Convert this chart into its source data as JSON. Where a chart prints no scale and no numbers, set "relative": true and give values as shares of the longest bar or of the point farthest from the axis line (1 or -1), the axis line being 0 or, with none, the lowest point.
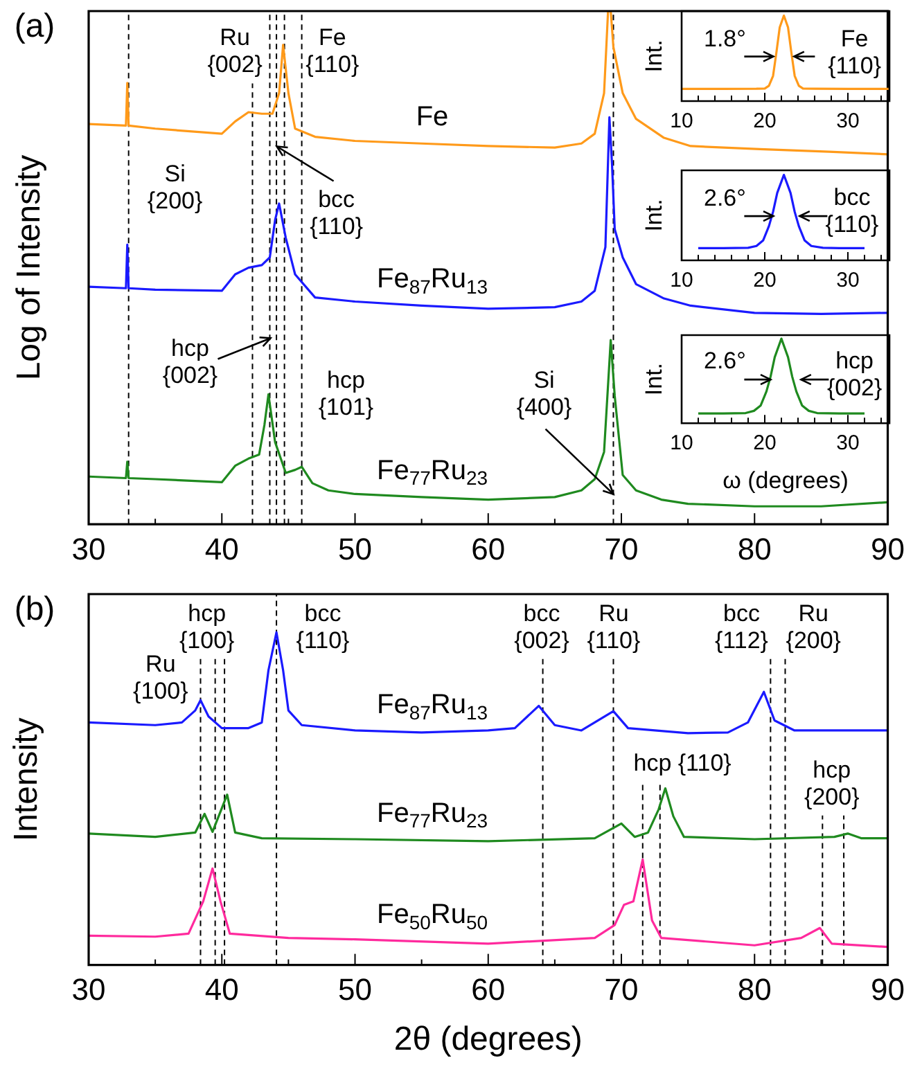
{
  "chart_data": [
    {
      "type": "line",
      "title": "(a)",
      "ylabel": "Log of Intensity",
      "relative": true,
      "xlim": [
        30,
        90
      ],
      "xticks": [
        30,
        {
          "value": 35,
          "label": null
        },
        40,
        {
          "value": 45,
          "label": null
        },
        50,
        {
          "value": 55,
          "label": null
        },
        60,
        {
          "value": 65,
          "label": null
        },
        70,
        {
          "value": 75,
          "label": null
        },
        80,
        {
          "value": 85,
          "label": null
        },
        90
      ],
      "series": [
        {
          "name": "Fe",
          "color": "#ff9a1a",
          "x": [
            30,
            32.8,
            32.9,
            33.0,
            35,
            40,
            41,
            42,
            43,
            43.8,
            44.3,
            44.6,
            45,
            45.5,
            47,
            50,
            55,
            60,
            65,
            67,
            68,
            68.7,
            69.0,
            69.2,
            69.4,
            70.1,
            71.1,
            73.2,
            75.2,
            80.4,
            85.6,
            90
          ],
          "values": [
            0.78,
            0.777,
            0.86,
            0.777,
            0.771,
            0.761,
            0.785,
            0.803,
            0.8,
            0.8,
            0.84,
            0.934,
            0.84,
            0.771,
            0.755,
            0.747,
            0.742,
            0.737,
            0.734,
            0.742,
            0.761,
            0.84,
            1,
            1,
            0.93,
            0.84,
            0.79,
            0.753,
            0.737,
            0.731,
            0.726,
            0.721
          ]
        },
        {
          "name": "Fe$_{87}$Ru$_{13}$",
          "color": "#1a1aff",
          "x": [
            30,
            32.8,
            32.9,
            33.0,
            35,
            40,
            41,
            42,
            43,
            43.6,
            44.0,
            44.3,
            44.8,
            45.5,
            47,
            50,
            55,
            60,
            65,
            67,
            68,
            68.8,
            69.1,
            69.3,
            69.5,
            70.1,
            71.1,
            73.2,
            75.2,
            80,
            85,
            90
          ],
          "values": [
            0.463,
            0.46,
            0.545,
            0.46,
            0.457,
            0.455,
            0.487,
            0.5,
            0.505,
            0.52,
            0.593,
            0.625,
            0.558,
            0.487,
            0.442,
            0.434,
            0.426,
            0.42,
            0.423,
            0.434,
            0.455,
            0.54,
            0.793,
            0.7,
            0.575,
            0.52,
            0.468,
            0.44,
            0.426,
            0.412,
            0.41,
            0.412
          ]
        },
        {
          "name": "Fe$_{77}$Ru$_{23}$",
          "color": "#1f8a1f",
          "x": [
            30,
            32.8,
            32.9,
            33.0,
            35,
            40,
            41,
            42,
            42.8,
            43.2,
            43.5,
            44,
            44.8,
            45.5,
            46,
            46.8,
            48,
            50,
            55,
            60,
            65,
            67,
            68,
            68.7,
            69.2,
            69.5,
            70.1,
            71.1,
            73,
            75,
            80,
            85,
            90
          ],
          "values": [
            0.093,
            0.09,
            0.122,
            0.09,
            0.088,
            0.082,
            0.114,
            0.128,
            0.136,
            0.194,
            0.253,
            0.16,
            0.1,
            0.106,
            0.112,
            0.08,
            0.066,
            0.059,
            0.053,
            0.048,
            0.053,
            0.066,
            0.088,
            0.141,
            0.359,
            0.25,
            0.096,
            0.066,
            0.048,
            0.04,
            0.035,
            0.035,
            0.043
          ]
        }
      ],
      "ref_lines": [
        {
          "axis": "x",
          "value": 33.0,
          "color": "#000000",
          "line_style": "dashed"
        },
        {
          "axis": "x",
          "value": 42.3,
          "color": "#000000",
          "line_style": "dashed"
        },
        {
          "axis": "x",
          "value": 43.6,
          "color": "#000000",
          "line_style": "dashed"
        },
        {
          "axis": "x",
          "value": 44.1,
          "color": "#000000",
          "line_style": "dashed"
        },
        {
          "axis": "x",
          "value": 44.7,
          "color": "#000000",
          "line_style": "dashed"
        },
        {
          "axis": "x",
          "value": 46.0,
          "color": "#000000",
          "line_style": "dashed"
        },
        {
          "axis": "x",
          "value": 69.4,
          "color": "#000000",
          "line_style": "dashed"
        }
      ],
      "annotations": [
        "Ru\n{002}",
        "Fe\n{110}",
        "Si\n{200}",
        "bcc\n{110}",
        "hcp\n{002}",
        "hcp\n{101}",
        "Si\n{400}"
      ]
    },
    {
      "type": "line",
      "ylabel": "Int.",
      "relative": true,
      "xlim": [
        10,
        35
      ],
      "xticks": [
        10,
        {
          "value": 12,
          "label": null
        },
        {
          "value": 14,
          "label": null
        },
        {
          "value": 16,
          "label": null
        },
        {
          "value": 18,
          "label": null
        },
        20,
        {
          "value": 22,
          "label": null
        },
        {
          "value": 24,
          "label": null
        },
        {
          "value": 26,
          "label": null
        },
        {
          "value": 28,
          "label": null
        },
        30,
        {
          "value": 32,
          "label": null
        },
        {
          "value": 34,
          "label": null
        }
      ],
      "series": [
        {
          "color": "#ff9a1a",
          "x": [
            10,
            15,
            19,
            20,
            20.5,
            21,
            21.4,
            21.8,
            22.3,
            22.8,
            23.2,
            23.6,
            24.1,
            24.6,
            26,
            30,
            35
          ],
          "values": [
            0.142,
            0.142,
            0.144,
            0.147,
            0.179,
            0.295,
            0.568,
            0.863,
            1,
            0.863,
            0.568,
            0.295,
            0.179,
            0.147,
            0.144,
            0.142,
            0.142
          ]
        }
      ],
      "annotations": [
        "1.8°",
        "Fe\n{110}"
      ]
    },
    {
      "type": "line",
      "ylabel": "Int.",
      "relative": true,
      "xlim": [
        10,
        35
      ],
      "xticks": [
        10,
        {
          "value": 12,
          "label": null
        },
        {
          "value": 14,
          "label": null
        },
        {
          "value": 16,
          "label": null
        },
        {
          "value": 18,
          "label": null
        },
        20,
        {
          "value": 22,
          "label": null
        },
        {
          "value": 24,
          "label": null
        },
        {
          "value": 26,
          "label": null
        },
        {
          "value": 28,
          "label": null
        },
        30,
        {
          "value": 32,
          "label": null
        },
        {
          "value": 34,
          "label": null
        }
      ],
      "series": [
        {
          "color": "#1a1aff",
          "x": [
            12,
            15,
            18,
            19,
            19.8,
            20.5,
            21,
            21.5,
            22.3,
            23.1,
            23.6,
            24.1,
            24.8,
            25.6,
            27,
            29,
            32
          ],
          "values": [
            0.142,
            0.142,
            0.147,
            0.168,
            0.232,
            0.4,
            0.568,
            0.789,
            1,
            0.789,
            0.568,
            0.4,
            0.232,
            0.168,
            0.147,
            0.142,
            0.142
          ]
        }
      ],
      "annotations": [
        "2.6°",
        "bcc\n{110}"
      ]
    },
    {
      "type": "line",
      "ylabel": "Int.",
      "xlabel": "ω (degrees)",
      "relative": true,
      "xlim": [
        10,
        35
      ],
      "xticks": [
        10,
        {
          "value": 12,
          "label": null
        },
        {
          "value": 14,
          "label": null
        },
        {
          "value": 16,
          "label": null
        },
        {
          "value": 18,
          "label": null
        },
        20,
        {
          "value": 22,
          "label": null
        },
        {
          "value": 24,
          "label": null
        },
        {
          "value": 26,
          "label": null
        },
        {
          "value": 28,
          "label": null
        },
        30,
        {
          "value": 32,
          "label": null
        },
        {
          "value": 34,
          "label": null
        }
      ],
      "series": [
        {
          "color": "#1f8a1f",
          "x": [
            12,
            15,
            17.7,
            18.7,
            19.5,
            20.2,
            20.7,
            21.2,
            22,
            22.8,
            23.3,
            23.8,
            24.5,
            25.3,
            26.3,
            29,
            32
          ],
          "values": [
            0.115,
            0.115,
            0.12,
            0.146,
            0.208,
            0.375,
            0.552,
            0.781,
            1,
            0.781,
            0.552,
            0.375,
            0.208,
            0.146,
            0.12,
            0.115,
            0.115
          ]
        }
      ],
      "annotations": [
        "2.6°",
        "hcp\n{002}"
      ]
    },
    {
      "type": "line",
      "title": "(b)",
      "ylabel": "Intensity",
      "xlabel": "2θ (degrees)",
      "relative": true,
      "xlim": [
        30,
        90
      ],
      "xticks": [
        30,
        {
          "value": 35,
          "label": null
        },
        40,
        {
          "value": 45,
          "label": null
        },
        50,
        {
          "value": 55,
          "label": null
        },
        60,
        {
          "value": 65,
          "label": null
        },
        70,
        {
          "value": 75,
          "label": null
        },
        80,
        {
          "value": 85,
          "label": null
        },
        90
      ],
      "series": [
        {
          "name": "Fe$_{87}$Ru$_{13}$",
          "color": "#1a1aff",
          "x": [
            30,
            35,
            37,
            38,
            38.4,
            39,
            40,
            42,
            43,
            43.5,
            44.1,
            44.6,
            45,
            46,
            50,
            55,
            60,
            62,
            63.8,
            65,
            67,
            69.4,
            70.5,
            75,
            78,
            79.5,
            80.7,
            81.5,
            83,
            90
          ],
          "values": [
            0.729,
            0.721,
            0.729,
            0.765,
            0.796,
            0.747,
            0.712,
            0.712,
            0.729,
            0.886,
            1,
            0.886,
            0.765,
            0.721,
            0.705,
            0.699,
            0.705,
            0.712,
            0.779,
            0.721,
            0.705,
            0.763,
            0.712,
            0.697,
            0.699,
            0.729,
            0.821,
            0.735,
            0.705,
            0.705
          ]
        },
        {
          "name": "Fe$_{77}$Ru$_{23}$",
          "color": "#1f8a1f",
          "x": [
            30,
            35,
            38,
            38.7,
            39.3,
            40.4,
            41,
            43,
            50,
            60,
            68,
            70,
            71,
            72,
            72.8,
            73.3,
            73.9,
            74.7,
            80,
            86,
            87,
            88,
            90
          ],
          "values": [
            0.395,
            0.385,
            0.398,
            0.454,
            0.4,
            0.512,
            0.398,
            0.381,
            0.378,
            0.372,
            0.381,
            0.425,
            0.385,
            0.398,
            0.468,
            0.531,
            0.447,
            0.385,
            0.378,
            0.385,
            0.395,
            0.381,
            0.381
          ]
        },
        {
          "name": "Fe$_{50}$Ru$_{50}$",
          "color": "#ff2a9d",
          "x": [
            30,
            35,
            37.5,
            38.6,
            39.3,
            39.9,
            40.6,
            45,
            50,
            60,
            68,
            69.5,
            70.2,
            70.9,
            71.6,
            72.3,
            73,
            80,
            83.5,
            84.9,
            85.8,
            90
          ],
          "values": [
            0.088,
            0.085,
            0.094,
            0.191,
            0.29,
            0.191,
            0.094,
            0.081,
            0.077,
            0.064,
            0.081,
            0.12,
            0.181,
            0.191,
            0.317,
            0.134,
            0.081,
            0.059,
            0.081,
            0.111,
            0.064,
            0.054
          ]
        }
      ],
      "ref_lines": [
        {
          "axis": "x",
          "value": 38.4,
          "color": "#000000",
          "line_style": "dashed"
        },
        {
          "axis": "x",
          "value": 39.5,
          "color": "#000000",
          "line_style": "dashed"
        },
        {
          "axis": "x",
          "value": 40.2,
          "color": "#000000",
          "line_style": "dashed"
        },
        {
          "axis": "x",
          "value": 44.1,
          "color": "#000000",
          "line_style": "dashed"
        },
        {
          "axis": "x",
          "value": 64.1,
          "color": "#000000",
          "line_style": "dashed"
        },
        {
          "axis": "x",
          "value": 69.4,
          "color": "#000000",
          "line_style": "dashed"
        },
        {
          "axis": "x",
          "value": 71.6,
          "color": "#000000",
          "line_style": "dashed"
        },
        {
          "axis": "x",
          "value": 72.9,
          "color": "#000000",
          "line_style": "dashed"
        },
        {
          "axis": "x",
          "value": 81.2,
          "color": "#000000",
          "line_style": "dashed"
        },
        {
          "axis": "x",
          "value": 82.3,
          "color": "#000000",
          "line_style": "dashed"
        },
        {
          "axis": "x",
          "value": 85.1,
          "color": "#000000",
          "line_style": "dashed"
        },
        {
          "axis": "x",
          "value": 86.7,
          "color": "#000000",
          "line_style": "dashed"
        }
      ],
      "annotations": [
        "Ru\n{100}",
        "hcp\n{100}",
        "bcc\n{110}",
        "bcc\n{002}",
        "Ru\n{110}",
        "bcc\n{112}",
        "Ru\n{200}",
        "hcp {110}",
        "hcp\n{200}"
      ]
    }
  ]
}
